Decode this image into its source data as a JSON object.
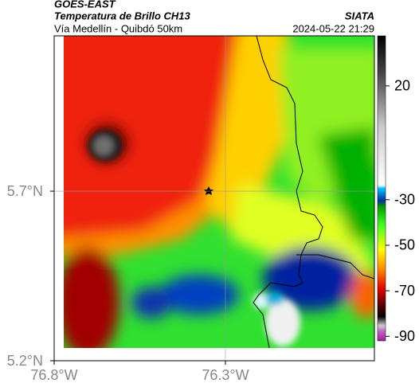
{
  "header": {
    "source": "GOES-EAST",
    "title": "Temperatura de Brillo CH13",
    "subtitle": "Vía Medellín - Quibdó 50km",
    "agency": "SIATA",
    "timestamp": "2024-05-22 21:29"
  },
  "map": {
    "xlim": [
      -76.8,
      -75.865
    ],
    "ylim": [
      5.2,
      6.158
    ],
    "xticks": [
      {
        "value": -76.8,
        "label": "76.8°W"
      },
      {
        "value": -76.3,
        "label": "76.3°W"
      }
    ],
    "yticks": [
      {
        "value": 5.2,
        "label": "5.2°N"
      },
      {
        "value": 5.7,
        "label": "5.7°N"
      }
    ]
  },
  "colorbar": {
    "lim": [
      -92,
      42
    ],
    "ticks": [
      20,
      -30,
      -50,
      -70,
      -90
    ]
  }
}
